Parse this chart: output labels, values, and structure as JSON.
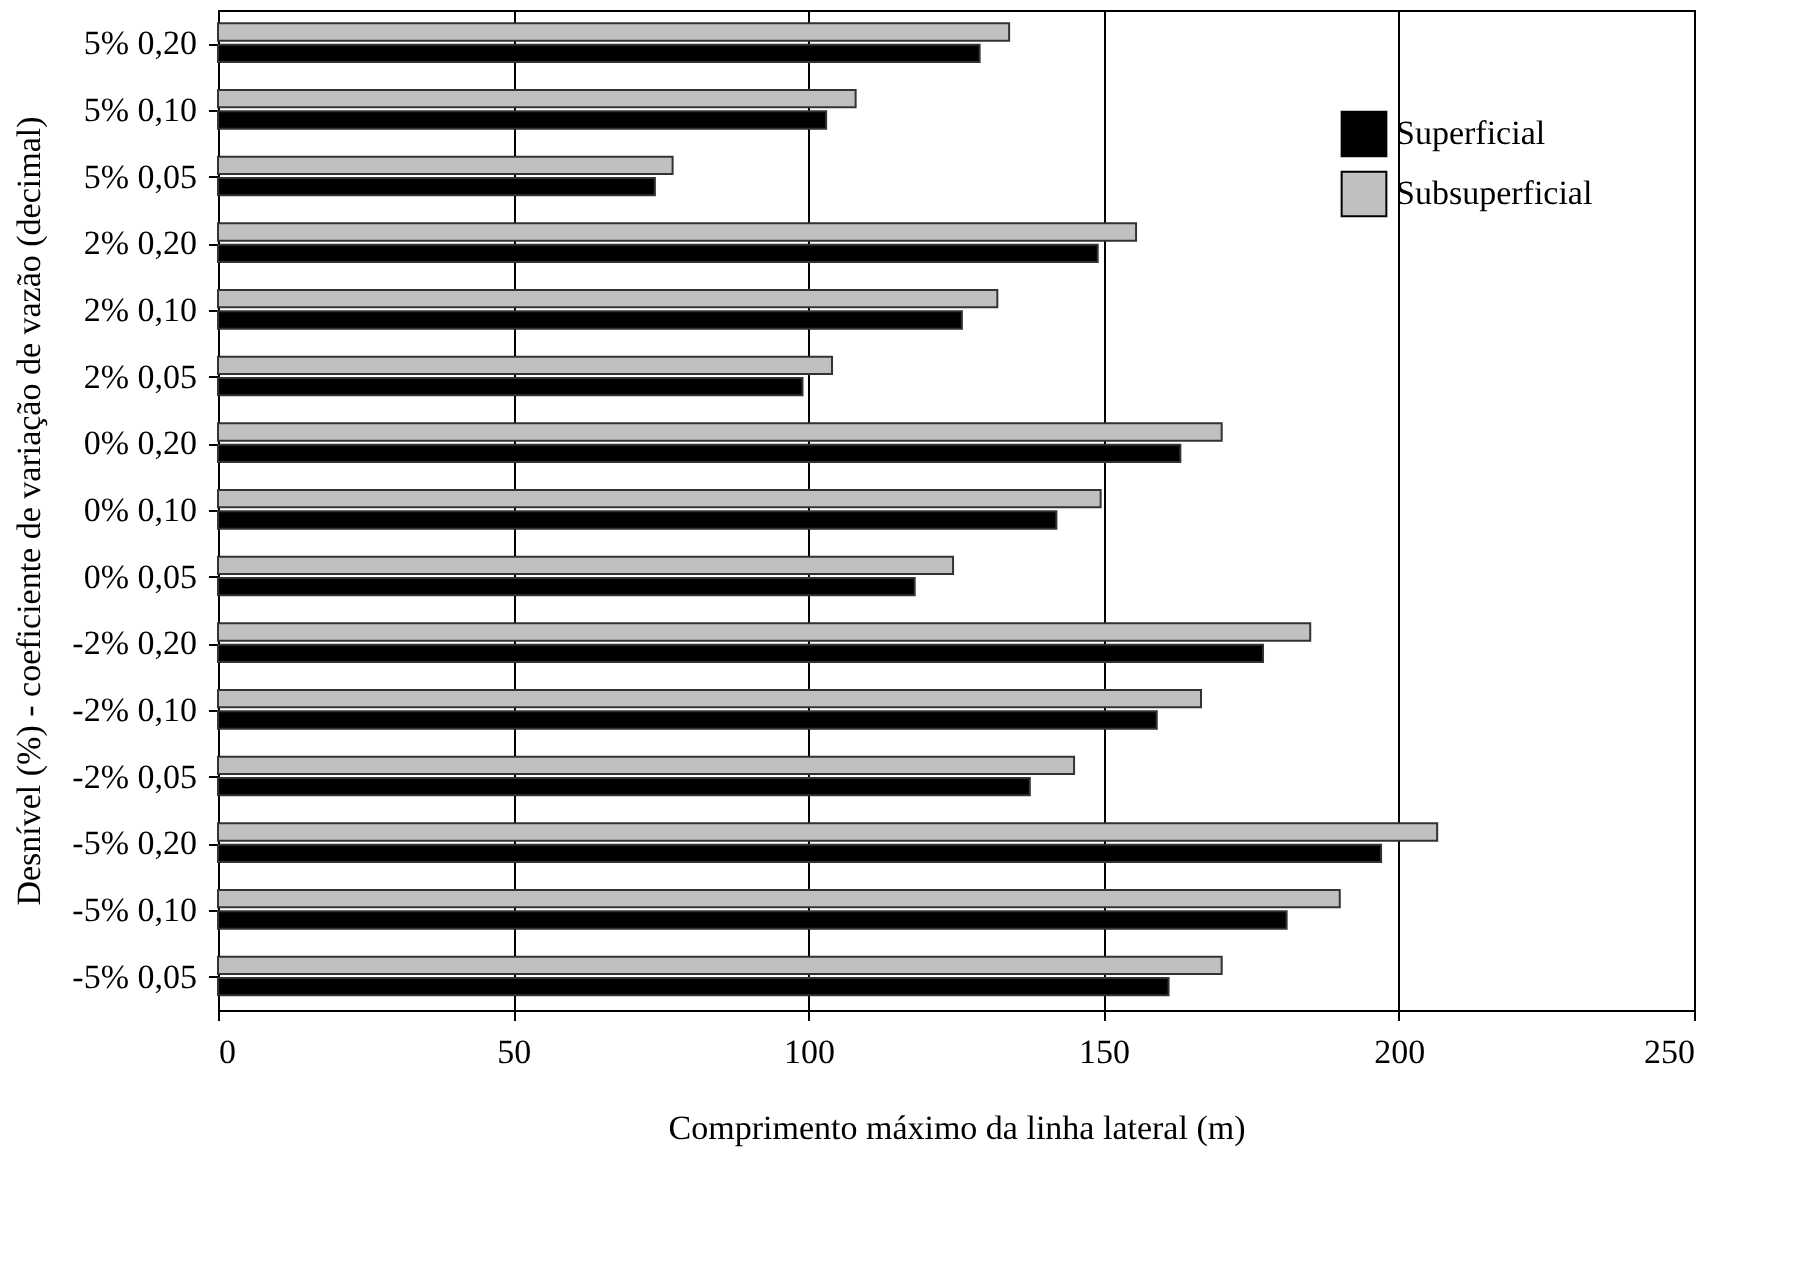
{
  "chart_data": {
    "type": "bar",
    "orientation": "horizontal",
    "xlabel": "Comprimento máximo da linha lateral (m)",
    "ylabel": "Desnível (%) - coeficiente de variação de vazão (decimal)",
    "categories": [
      "5% 0,20",
      "5% 0,10",
      "5% 0,05",
      "2% 0,20",
      "2% 0,10",
      "2% 0,05",
      "0% 0,20",
      "0% 0,10",
      "0% 0,05",
      "-2% 0,20",
      "-2% 0,10",
      "-2% 0,05",
      "-5% 0,20",
      "-5% 0,10",
      "-5% 0,05"
    ],
    "series": [
      {
        "name": "Superficial",
        "color": "#000000",
        "values": [
          129,
          103,
          74,
          149,
          126,
          99,
          163,
          142,
          118,
          177,
          159,
          137.5,
          197,
          181,
          161
        ]
      },
      {
        "name": "Subsuperficial",
        "color": "#c0c0c0",
        "values": [
          134,
          108,
          77,
          155.5,
          132,
          104,
          170,
          149.5,
          124.5,
          185,
          166.5,
          145,
          206.5,
          190,
          170
        ]
      }
    ],
    "xlim": [
      0,
      250
    ],
    "xticks": [
      0,
      50,
      100,
      150,
      200,
      250
    ],
    "grid": "x",
    "legend": "top right"
  }
}
